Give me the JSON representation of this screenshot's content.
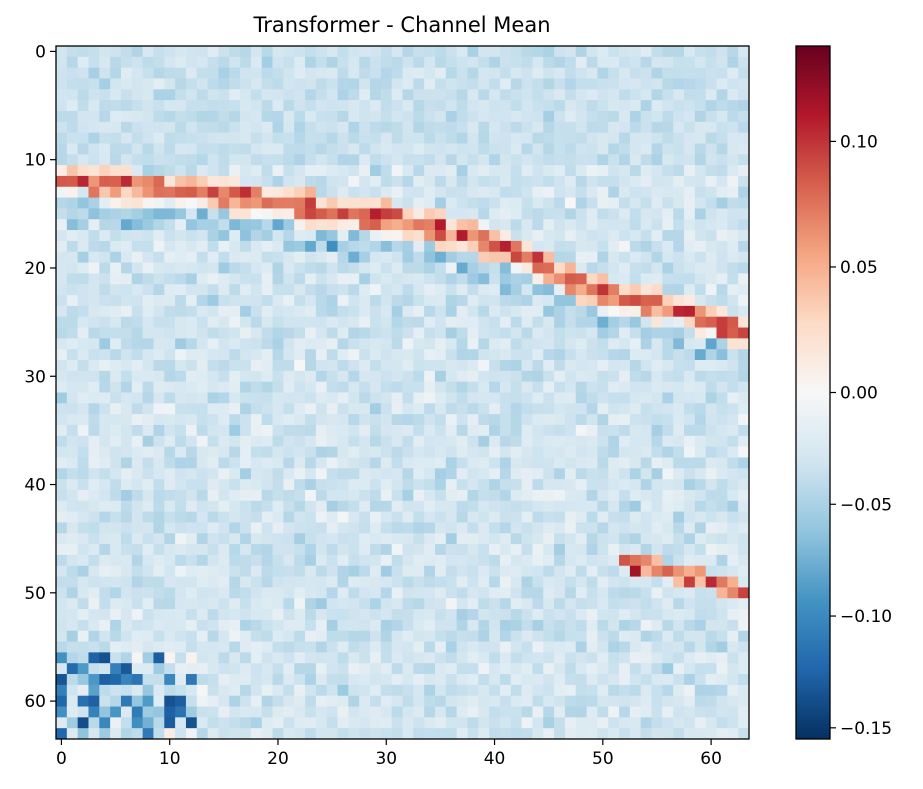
{
  "chart_data": {
    "type": "heatmap",
    "title": "Transformer - Channel Mean",
    "xlabel": "",
    "ylabel": "",
    "rows": 64,
    "cols": 64,
    "x_ticks": [
      0,
      10,
      20,
      30,
      40,
      50,
      60
    ],
    "y_ticks": [
      0,
      10,
      20,
      30,
      40,
      50,
      60
    ],
    "y_axis_inverted": true,
    "colormap": "RdBu_r",
    "vmin": -0.155,
    "vmax": 0.138,
    "colorbar": {
      "ticks": [
        0.1,
        0.05,
        0.0,
        -0.05,
        -0.1,
        -0.15
      ],
      "tick_labels": [
        "0.10",
        "0.05",
        "0.00",
        "−0.05",
        "−0.10",
        "−0.15"
      ]
    },
    "features": {
      "background_mean": -0.03,
      "diagonal_band": {
        "description": "positive (red) band of values descending from row 12 at col 0 to row 26 at col 63",
        "points": [
          [
            0,
            12
          ],
          [
            5,
            12.5
          ],
          [
            12,
            13
          ],
          [
            20,
            14
          ],
          [
            25,
            15
          ],
          [
            30,
            15.5
          ],
          [
            35,
            16.5
          ],
          [
            40,
            18
          ],
          [
            43,
            19
          ],
          [
            46,
            21
          ],
          [
            50,
            22.5
          ],
          [
            55,
            23.5
          ],
          [
            60,
            25
          ],
          [
            63,
            26
          ]
        ],
        "peak_value": 0.12
      },
      "lower_band": {
        "description": "short positive band lower right",
        "points": [
          [
            52,
            47
          ],
          [
            56,
            48
          ],
          [
            60,
            49
          ],
          [
            63,
            50
          ]
        ],
        "peak_value": 0.13
      },
      "negative_cluster": {
        "description": "strongly negative cells bottom-left",
        "rows": [
          56,
          63
        ],
        "cols": [
          0,
          12
        ],
        "min_value": -0.155
      }
    }
  }
}
